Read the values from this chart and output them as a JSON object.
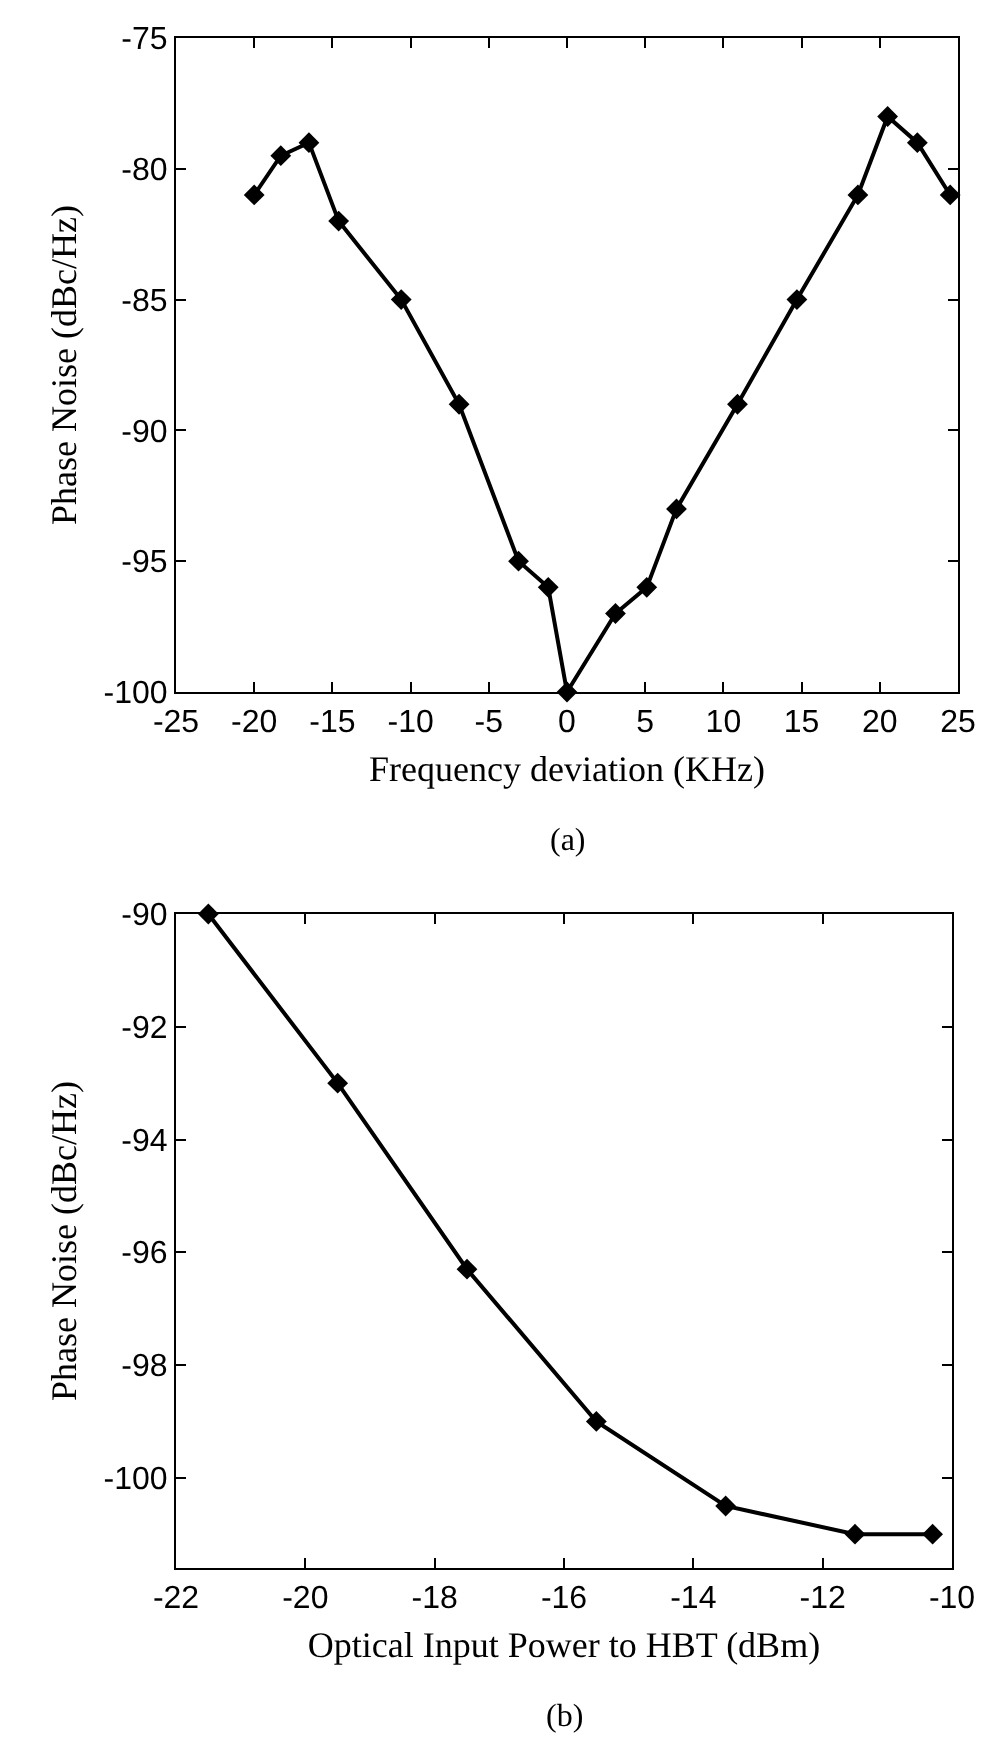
{
  "chart_data": [
    {
      "type": "line",
      "xlabel": "Frequency deviation (KHz)",
      "ylabel": "Phase Noise (dBc/Hz)",
      "annotations": [
        "(a)"
      ],
      "x": [
        -20,
        -18.3,
        -16.5,
        -14.6,
        -10.6,
        -6.9,
        -3.1,
        -1.2,
        0,
        3.1,
        5.1,
        7,
        10.9,
        14.7,
        18.6,
        20.5,
        22.4,
        24.5
      ],
      "series": [
        {
          "color": "#000000",
          "values": [
            -81,
            -79.5,
            -79,
            -82,
            -85,
            -89,
            -95,
            -96,
            -100,
            -97,
            -96,
            -93,
            -89,
            -85,
            -81,
            -78,
            -79,
            -81
          ]
        }
      ],
      "xlim": [
        -25,
        25
      ],
      "xticks": [
        -25,
        -20,
        -15,
        -10,
        -5,
        0,
        5,
        10,
        15,
        20,
        25
      ],
      "ylim": [
        -100,
        -75
      ],
      "yticks": [
        -100,
        -95,
        -90,
        -85,
        -80,
        -75
      ],
      "marker": "diamond",
      "line_style": "solid",
      "grid": false
    },
    {
      "type": "line",
      "xlabel": "Optical Input Power to HBT (dBm)",
      "ylabel": "Phase Noise (dBc/Hz)",
      "annotations": [
        "(b)"
      ],
      "x": [
        -21.5,
        -19.5,
        -17.5,
        -15.5,
        -13.5,
        -11.5,
        -10.3
      ],
      "series": [
        {
          "color": "#000000",
          "values": [
            -90,
            -93,
            -96.3,
            -99,
            -100.5,
            -101,
            -101
          ]
        }
      ],
      "xlim": [
        -22,
        -10
      ],
      "xticks": [
        -22,
        -20,
        -18,
        -16,
        -14,
        -12,
        -10
      ],
      "ylim": [
        -101.6,
        -90
      ],
      "yticks": [
        -100,
        -98,
        -96,
        -94,
        -92,
        -90
      ],
      "marker": "diamond",
      "line_style": "solid",
      "grid": false
    }
  ]
}
